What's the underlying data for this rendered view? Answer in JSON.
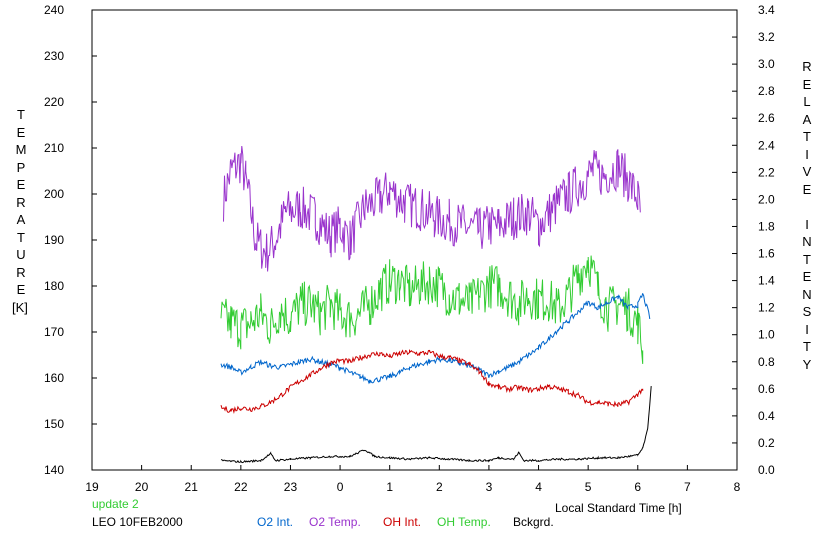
{
  "chart_data": {
    "type": "line",
    "xlabel": "Local Standard Time [h]",
    "x_ticks": [
      "19",
      "20",
      "21",
      "22",
      "23",
      "0",
      "1",
      "2",
      "3",
      "4",
      "5",
      "6",
      "7",
      "8"
    ],
    "x_range": [
      19,
      32
    ],
    "ylabel_left": "TEMPERATURE",
    "ylabel_left_unit": "[K]",
    "ylim_left": [
      140,
      240
    ],
    "y_ticks_left": [
      140,
      150,
      160,
      170,
      180,
      190,
      200,
      210,
      220,
      230,
      240
    ],
    "ylabel_right": "RELATIVE INTENSITY",
    "ylim_right": [
      0.0,
      3.4
    ],
    "y_ticks_right": [
      "0.0",
      "0.2",
      "0.4",
      "0.6",
      "0.8",
      "1.0",
      "1.2",
      "1.4",
      "1.6",
      "1.8",
      "2.0",
      "2.2",
      "2.4",
      "2.6",
      "2.8",
      "3.0",
      "3.2",
      "3.4"
    ],
    "grid": false,
    "legend_position": "bottom",
    "series": [
      {
        "name": "O2 Temp.",
        "axis": "left",
        "color": "#9933cc",
        "jitter": 5,
        "points": [
          [
            21.65,
            199
          ],
          [
            21.8,
            205
          ],
          [
            22.0,
            207
          ],
          [
            22.1,
            203
          ],
          [
            22.3,
            190
          ],
          [
            22.5,
            187
          ],
          [
            22.7,
            190
          ],
          [
            22.9,
            196
          ],
          [
            23.2,
            197
          ],
          [
            23.5,
            195
          ],
          [
            23.8,
            191
          ],
          [
            24.0,
            193
          ],
          [
            24.2,
            190
          ],
          [
            24.5,
            197
          ],
          [
            24.8,
            199
          ],
          [
            25.0,
            201
          ],
          [
            25.3,
            198
          ],
          [
            25.6,
            197
          ],
          [
            25.9,
            195
          ],
          [
            26.2,
            194
          ],
          [
            26.5,
            193
          ],
          [
            26.8,
            192
          ],
          [
            27.0,
            193
          ],
          [
            27.2,
            193
          ],
          [
            27.5,
            195
          ],
          [
            27.8,
            196
          ],
          [
            28.0,
            193
          ],
          [
            28.3,
            197
          ],
          [
            28.6,
            200
          ],
          [
            28.9,
            203
          ],
          [
            29.1,
            205
          ],
          [
            29.3,
            204
          ],
          [
            29.6,
            206
          ],
          [
            29.8,
            203
          ],
          [
            30.0,
            199
          ],
          [
            30.05,
            196
          ]
        ]
      },
      {
        "name": "OH Temp.",
        "axis": "left",
        "color": "#33cc33",
        "jitter": 5,
        "points": [
          [
            21.6,
            173
          ],
          [
            21.8,
            172
          ],
          [
            22.0,
            171
          ],
          [
            22.2,
            172
          ],
          [
            22.4,
            174
          ],
          [
            22.6,
            171
          ],
          [
            22.8,
            175
          ],
          [
            23.0,
            173
          ],
          [
            23.2,
            176
          ],
          [
            23.4,
            176
          ],
          [
            23.6,
            174
          ],
          [
            23.8,
            176
          ],
          [
            24.0,
            174
          ],
          [
            24.2,
            173
          ],
          [
            24.4,
            174
          ],
          [
            24.6,
            176
          ],
          [
            24.8,
            179
          ],
          [
            25.0,
            181
          ],
          [
            25.2,
            181
          ],
          [
            25.4,
            179
          ],
          [
            25.6,
            180
          ],
          [
            25.8,
            181
          ],
          [
            26.0,
            180
          ],
          [
            26.2,
            178
          ],
          [
            26.4,
            177
          ],
          [
            26.6,
            176
          ],
          [
            26.8,
            178
          ],
          [
            27.0,
            180
          ],
          [
            27.2,
            180
          ],
          [
            27.4,
            178
          ],
          [
            27.6,
            176
          ],
          [
            27.8,
            178
          ],
          [
            28.0,
            177
          ],
          [
            28.2,
            177
          ],
          [
            28.4,
            175
          ],
          [
            28.6,
            178
          ],
          [
            28.8,
            182
          ],
          [
            29.0,
            186
          ],
          [
            29.2,
            179
          ],
          [
            29.4,
            175
          ],
          [
            29.6,
            176
          ],
          [
            29.8,
            175
          ],
          [
            30.0,
            172
          ],
          [
            30.1,
            166
          ]
        ]
      },
      {
        "name": "O2 Int.",
        "axis": "right",
        "color": "#0066cc",
        "jitter": 0.02,
        "points": [
          [
            21.6,
            0.78
          ],
          [
            21.8,
            0.76
          ],
          [
            22.0,
            0.72
          ],
          [
            22.2,
            0.76
          ],
          [
            22.4,
            0.8
          ],
          [
            22.6,
            0.77
          ],
          [
            22.8,
            0.76
          ],
          [
            23.0,
            0.78
          ],
          [
            23.2,
            0.8
          ],
          [
            23.4,
            0.82
          ],
          [
            23.6,
            0.8
          ],
          [
            23.8,
            0.78
          ],
          [
            24.0,
            0.76
          ],
          [
            24.2,
            0.72
          ],
          [
            24.4,
            0.69
          ],
          [
            24.6,
            0.66
          ],
          [
            24.8,
            0.67
          ],
          [
            25.0,
            0.69
          ],
          [
            25.2,
            0.72
          ],
          [
            25.4,
            0.76
          ],
          [
            25.6,
            0.78
          ],
          [
            25.8,
            0.8
          ],
          [
            26.0,
            0.82
          ],
          [
            26.2,
            0.81
          ],
          [
            26.4,
            0.79
          ],
          [
            26.6,
            0.77
          ],
          [
            26.8,
            0.74
          ],
          [
            27.0,
            0.7
          ],
          [
            27.2,
            0.73
          ],
          [
            27.4,
            0.76
          ],
          [
            27.6,
            0.8
          ],
          [
            27.8,
            0.85
          ],
          [
            28.0,
            0.9
          ],
          [
            28.2,
            0.97
          ],
          [
            28.4,
            1.04
          ],
          [
            28.6,
            1.1
          ],
          [
            28.8,
            1.17
          ],
          [
            29.0,
            1.24
          ],
          [
            29.2,
            1.2
          ],
          [
            29.4,
            1.24
          ],
          [
            29.6,
            1.28
          ],
          [
            29.8,
            1.2
          ],
          [
            30.0,
            1.22
          ],
          [
            30.1,
            1.3
          ],
          [
            30.25,
            1.12
          ]
        ]
      },
      {
        "name": "OH Int.",
        "axis": "right",
        "color": "#cc0000",
        "jitter": 0.02,
        "points": [
          [
            21.6,
            0.46
          ],
          [
            21.8,
            0.44
          ],
          [
            22.0,
            0.46
          ],
          [
            22.2,
            0.45
          ],
          [
            22.4,
            0.47
          ],
          [
            22.6,
            0.5
          ],
          [
            22.8,
            0.55
          ],
          [
            23.0,
            0.61
          ],
          [
            23.2,
            0.66
          ],
          [
            23.4,
            0.7
          ],
          [
            23.6,
            0.75
          ],
          [
            23.8,
            0.79
          ],
          [
            24.0,
            0.81
          ],
          [
            24.2,
            0.8
          ],
          [
            24.4,
            0.83
          ],
          [
            24.6,
            0.85
          ],
          [
            24.8,
            0.86
          ],
          [
            25.0,
            0.84
          ],
          [
            25.2,
            0.86
          ],
          [
            25.4,
            0.87
          ],
          [
            25.6,
            0.86
          ],
          [
            25.8,
            0.87
          ],
          [
            26.0,
            0.84
          ],
          [
            26.2,
            0.83
          ],
          [
            26.4,
            0.81
          ],
          [
            26.6,
            0.78
          ],
          [
            26.8,
            0.73
          ],
          [
            27.0,
            0.64
          ],
          [
            27.2,
            0.61
          ],
          [
            27.4,
            0.6
          ],
          [
            27.6,
            0.61
          ],
          [
            27.8,
            0.59
          ],
          [
            28.0,
            0.6
          ],
          [
            28.2,
            0.62
          ],
          [
            28.4,
            0.6
          ],
          [
            28.6,
            0.58
          ],
          [
            28.8,
            0.55
          ],
          [
            29.0,
            0.5
          ],
          [
            29.2,
            0.5
          ],
          [
            29.4,
            0.49
          ],
          [
            29.6,
            0.48
          ],
          [
            29.8,
            0.5
          ],
          [
            30.0,
            0.56
          ],
          [
            30.1,
            0.6
          ]
        ]
      },
      {
        "name": "Bckgrd.",
        "axis": "right",
        "color": "#000000",
        "jitter": 0.007,
        "points": [
          [
            21.6,
            0.07
          ],
          [
            22.0,
            0.06
          ],
          [
            22.4,
            0.07
          ],
          [
            22.6,
            0.12
          ],
          [
            22.7,
            0.07
          ],
          [
            23.0,
            0.08
          ],
          [
            23.4,
            0.09
          ],
          [
            23.8,
            0.1
          ],
          [
            24.2,
            0.1
          ],
          [
            24.5,
            0.15
          ],
          [
            24.7,
            0.1
          ],
          [
            25.0,
            0.09
          ],
          [
            25.4,
            0.08
          ],
          [
            25.8,
            0.09
          ],
          [
            26.2,
            0.08
          ],
          [
            26.6,
            0.07
          ],
          [
            27.0,
            0.07
          ],
          [
            27.2,
            0.09
          ],
          [
            27.5,
            0.08
          ],
          [
            27.6,
            0.13
          ],
          [
            27.7,
            0.07
          ],
          [
            28.0,
            0.07
          ],
          [
            28.4,
            0.08
          ],
          [
            28.8,
            0.08
          ],
          [
            29.2,
            0.09
          ],
          [
            29.6,
            0.09
          ],
          [
            30.0,
            0.11
          ],
          [
            30.1,
            0.16
          ],
          [
            30.2,
            0.3
          ],
          [
            30.27,
            0.62
          ]
        ]
      }
    ]
  },
  "legend": {
    "update_note": "update 2",
    "station_date": "LEO 10FEB2000",
    "items": [
      {
        "label": "O2 Int.",
        "color": "#0066cc"
      },
      {
        "label": "O2 Temp.",
        "color": "#9933cc"
      },
      {
        "label": "OH Int.",
        "color": "#cc0000"
      },
      {
        "label": "OH Temp.",
        "color": "#33cc33"
      },
      {
        "label": "Bckgrd.",
        "color": "#000000"
      }
    ]
  }
}
